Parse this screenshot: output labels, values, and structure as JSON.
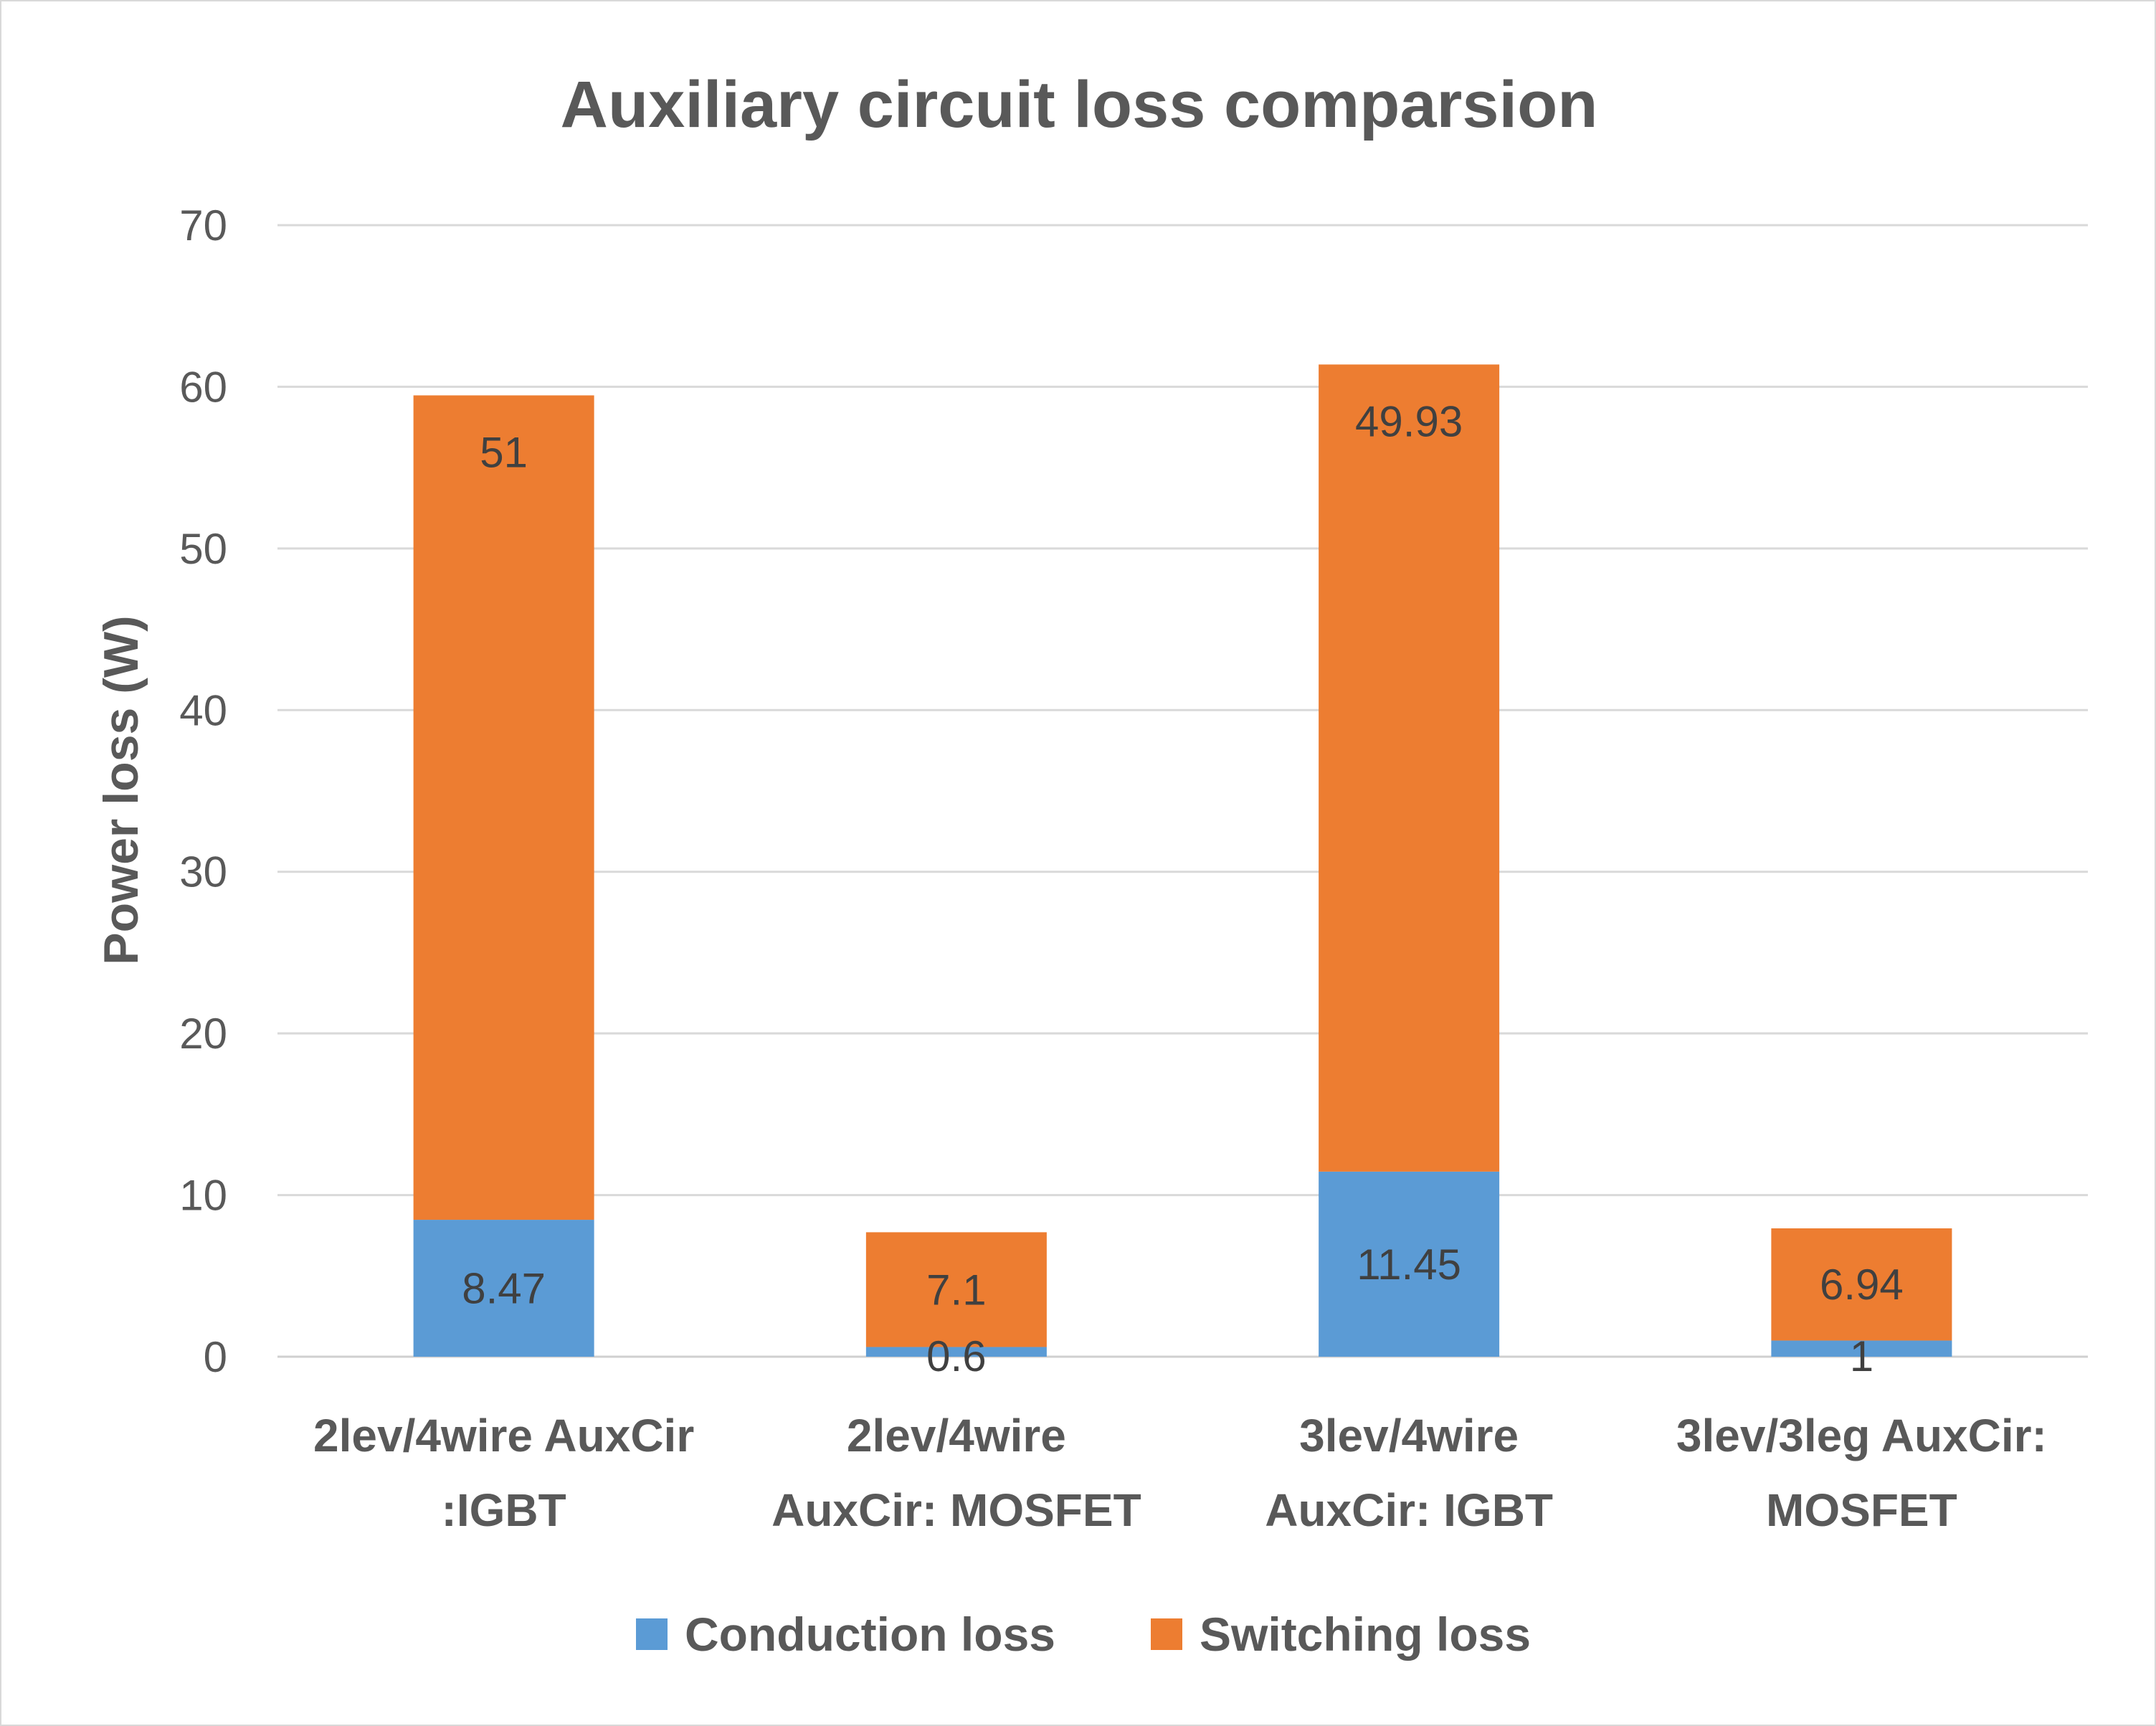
{
  "chart_data": {
    "type": "bar",
    "stacked": true,
    "title": "Auxiliary circuit loss comparsion",
    "ylabel": "Power loss (W)",
    "ylim": [
      0,
      70
    ],
    "yticks": [
      0,
      10,
      20,
      30,
      40,
      50,
      60,
      70
    ],
    "grid": true,
    "legend_position": "bottom",
    "categories": [
      [
        "2lev/4wire AuxCir",
        ":IGBT"
      ],
      [
        "2lev/4wire",
        "AuxCir: MOSFET"
      ],
      [
        "3lev/4wire",
        "AuxCir: IGBT"
      ],
      [
        "3lev/3leg AuxCir:",
        "MOSFET"
      ]
    ],
    "series": [
      {
        "name": "Conduction loss",
        "color": "#5b9bd5",
        "values": [
          8.47,
          0.6,
          11.45,
          1
        ],
        "labels": [
          "8.47",
          "0.6",
          "11.45",
          "1"
        ]
      },
      {
        "name": "Switching loss",
        "color": "#ed7d31",
        "values": [
          51,
          7.1,
          49.93,
          6.94
        ],
        "labels": [
          "51",
          "7.1",
          "49.93",
          "6.94"
        ]
      }
    ]
  }
}
